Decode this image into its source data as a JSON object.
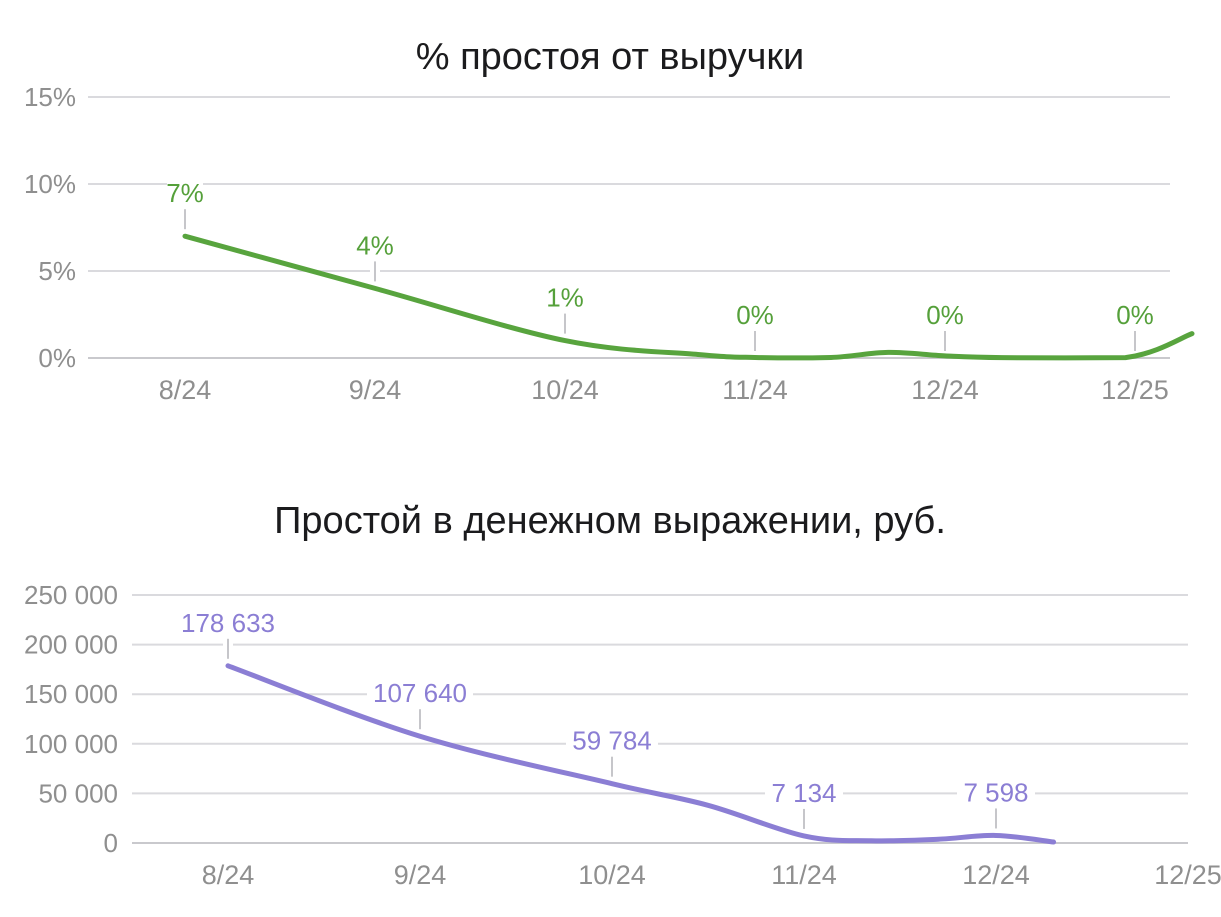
{
  "page": {
    "background": "#ffffff"
  },
  "chart_data": [
    {
      "type": "line",
      "title": "% простоя от выручки",
      "categories": [
        "8/24",
        "9/24",
        "10/24",
        "11/24",
        "12/24",
        "12/25"
      ],
      "values": [
        7,
        4,
        1,
        0,
        0,
        0
      ],
      "data_labels": [
        "7%",
        "4%",
        "1%",
        "0%",
        "0%",
        "0%"
      ],
      "xlabel": "",
      "ylabel": "",
      "ylim": [
        0,
        15
      ],
      "y_ticks": [
        0,
        5,
        10,
        15
      ],
      "y_tick_labels": [
        "0%",
        "5%",
        "10%",
        "15%"
      ],
      "grid": true,
      "legend": "none",
      "line_color": "#58a43e",
      "label_color": "#55a03a",
      "axis_text_color": "#8f8f8f",
      "plot_points": [
        [
          0,
          7
        ],
        [
          1,
          4
        ],
        [
          2,
          1
        ],
        [
          2.7,
          0.2
        ],
        [
          3,
          0.03
        ],
        [
          3.4,
          0.03
        ],
        [
          3.7,
          0.32
        ],
        [
          4,
          0.12
        ],
        [
          4.3,
          0.02
        ],
        [
          4.95,
          0.02
        ],
        [
          5.3,
          1.4
        ]
      ]
    },
    {
      "type": "line",
      "title": "Простой в денежном выражении, руб.",
      "categories": [
        "8/24",
        "9/24",
        "10/24",
        "11/24",
        "12/24",
        "12/25"
      ],
      "values": [
        178633,
        107640,
        59784,
        7134,
        7598
      ],
      "data_labels": [
        "178 633",
        "107 640",
        "59 784",
        "7 134",
        "7 598"
      ],
      "xlabel": "",
      "ylabel": "",
      "ylim": [
        0,
        250000
      ],
      "y_ticks": [
        0,
        50000,
        100000,
        150000,
        200000,
        250000
      ],
      "y_tick_labels": [
        "0",
        "50 000",
        "100 000",
        "150 000",
        "200 000",
        "250 000"
      ],
      "grid": true,
      "legend": "none",
      "line_color": "#8b7ed4",
      "label_color": "#8b7ed4",
      "axis_text_color": "#8f8f8f",
      "plot_points": [
        [
          0,
          178633
        ],
        [
          1,
          107640
        ],
        [
          2,
          59784
        ],
        [
          2.5,
          38000
        ],
        [
          3,
          7134
        ],
        [
          3.35,
          2300
        ],
        [
          3.7,
          3800
        ],
        [
          4,
          7598
        ],
        [
          4.3,
          1000
        ]
      ]
    }
  ]
}
